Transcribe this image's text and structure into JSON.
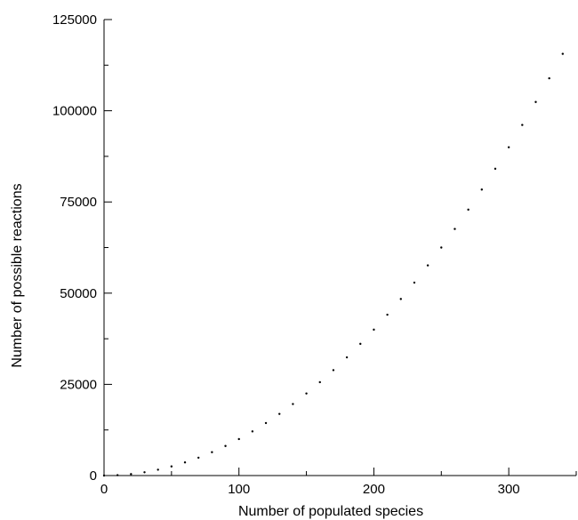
{
  "chart_data": {
    "type": "scatter",
    "title": "",
    "xlabel": "Number of populated species",
    "ylabel": "Number of possible reactions",
    "xlim": [
      0,
      350
    ],
    "ylim": [
      0,
      125000
    ],
    "x_ticks": [
      0,
      100,
      200,
      300
    ],
    "x_tick_labels": [
      "0",
      "100",
      "200",
      "300"
    ],
    "x_minor_ticks": [
      50,
      150,
      250,
      350
    ],
    "y_ticks": [
      0,
      25000,
      50000,
      75000,
      100000,
      125000
    ],
    "y_tick_labels": [
      "0",
      "25000",
      "50000",
      "75000",
      "100000",
      "125000"
    ],
    "y_minor_ticks": [
      12500,
      37500,
      62500,
      87500,
      112500
    ],
    "grid": false,
    "marker_color": "#000000",
    "series": [
      {
        "x": [
          0,
          10,
          20,
          30,
          40,
          50,
          60,
          70,
          80,
          90,
          100,
          110,
          120,
          130,
          140,
          150,
          160,
          170,
          180,
          190,
          200,
          210,
          220,
          230,
          240,
          250,
          260,
          270,
          280,
          290,
          300,
          310,
          320,
          330,
          340
        ],
        "y": [
          0,
          100,
          400,
          900,
          1600,
          2500,
          3600,
          4900,
          6400,
          8100,
          10000,
          12100,
          14400,
          16900,
          19600,
          22500,
          25600,
          28900,
          32400,
          36100,
          40000,
          44100,
          48400,
          52900,
          57600,
          62500,
          67600,
          72900,
          78400,
          84100,
          90000,
          96100,
          102400,
          108900,
          115600
        ]
      }
    ]
  }
}
